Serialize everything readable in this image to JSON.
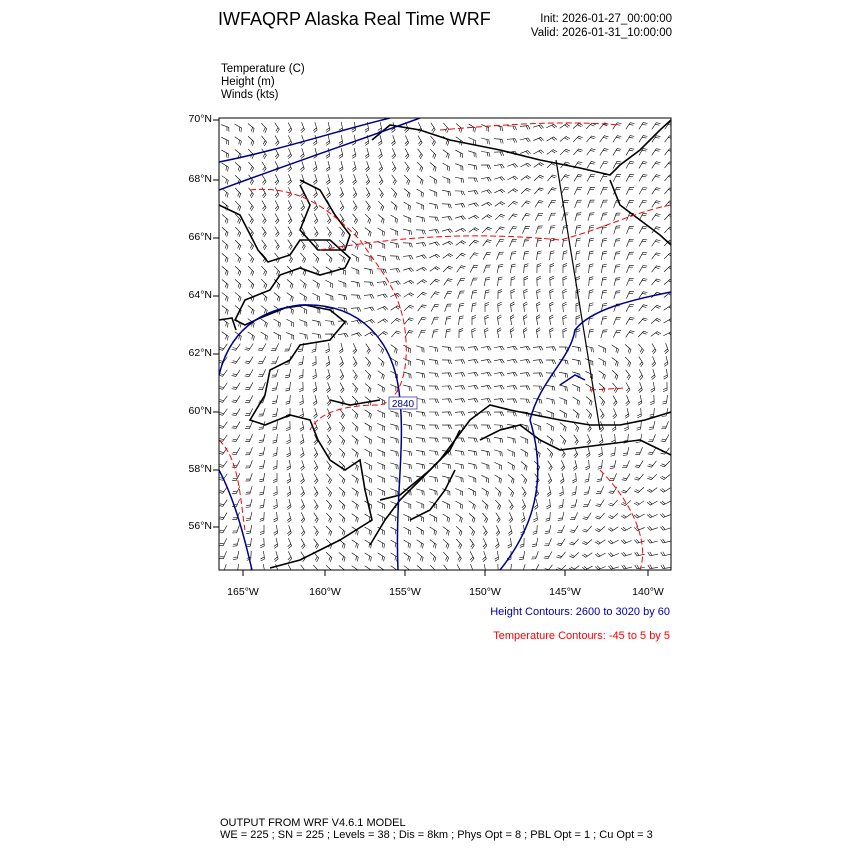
{
  "header": {
    "title": "IWFAQRP Alaska Real Time WRF",
    "init": "Init: 2026-01-27_00:00:00",
    "valid": "Valid: 2026-01-31_10:00:00"
  },
  "fields": [
    {
      "label": "Temperature   (C)"
    },
    {
      "label": "Height   (m)"
    },
    {
      "label": "Winds   (kts)"
    }
  ],
  "map": {
    "region": "Alaska",
    "lat_ticks": [
      "70°N",
      "68°N",
      "66°N",
      "64°N",
      "62°N",
      "60°N",
      "58°N",
      "56°N"
    ],
    "lon_ticks": [
      "165°W",
      "160°W",
      "155°W",
      "150°W",
      "145°W",
      "140°W"
    ],
    "contour_label": "2840",
    "colors": {
      "height": "#00008b",
      "temperature": "#ff0000",
      "coast": "#000000",
      "barbs": "#000000"
    }
  },
  "legend": {
    "height_contours": "Height Contours: 2600 to 3020 by 60",
    "temperature_contours": "Temperature Contours: -45 to 5 by 5"
  },
  "footer": {
    "line1": "OUTPUT FROM WRF V4.6.1 MODEL",
    "line2": "WE = 225 ; SN = 225 ; Levels = 38 ; Dis = 8km ; Phys Opt = 8 ; PBL Opt = 1 ; Cu Opt = 3"
  }
}
